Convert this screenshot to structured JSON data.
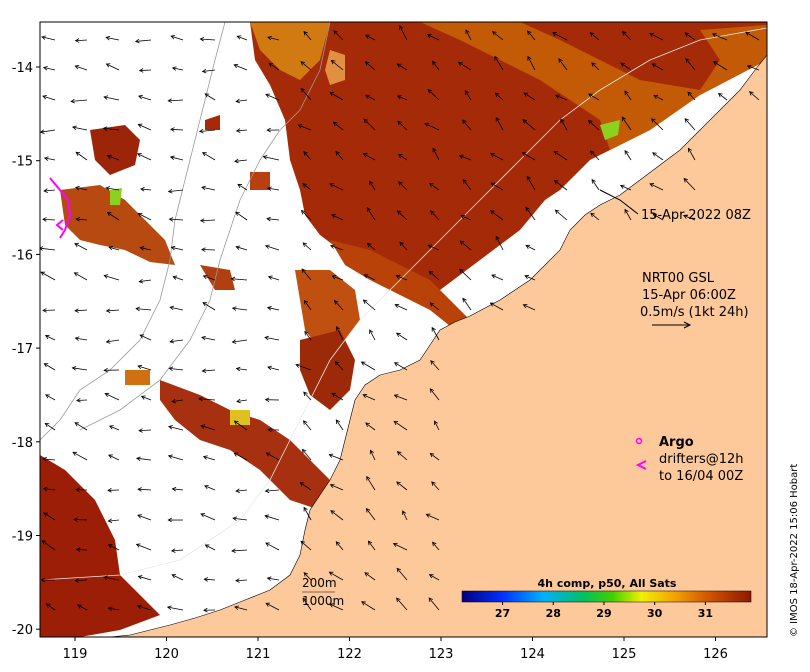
{
  "map": {
    "lon_ticks": [
      "119",
      "120",
      "121",
      "122",
      "123",
      "124",
      "125",
      "126"
    ],
    "lat_ticks": [
      "-14",
      "-15",
      "-16",
      "-17",
      "-18",
      "-19",
      "-20"
    ],
    "colors": {
      "land": "#fdc89a",
      "sea_missing": "#ffffff",
      "sst_dark": "#8b1a00",
      "sst_mid": "#c04a00",
      "sst_warm": "#e08a10",
      "coast_line": "#000000",
      "isobath": "#9a9a9a",
      "argo": "#ff00ff"
    }
  },
  "annotations": {
    "pass_time": "15-Apr-2022 08Z",
    "current_title": "NRT00 GSL",
    "current_time": "15-Apr 06:00Z",
    "current_scale": "0.5m/s (1kt 24h)",
    "argo_label": "Argo",
    "drifters_line1": "drifters@12h",
    "drifters_line2": "to 16/04 00Z",
    "isobath_200": "200m",
    "isobath_1000": "1000m",
    "credit": "© IMOS 18-Apr-2022 15:06 Hobart"
  },
  "colorbar": {
    "title": "4h comp, p50, All Sats",
    "ticks": [
      "27",
      "28",
      "29",
      "30",
      "31"
    ],
    "tick_values": [
      27,
      28,
      29,
      30,
      31
    ],
    "min": 26.2,
    "max": 31.9
  }
}
